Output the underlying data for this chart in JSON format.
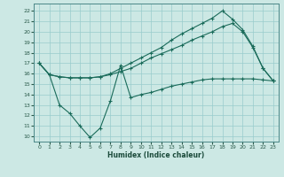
{
  "xlabel": "Humidex (Indice chaleur)",
  "bg_color": "#cce8e4",
  "grid_color": "#99cccc",
  "line_color": "#1a6b5a",
  "xlim": [
    -0.5,
    23.5
  ],
  "ylim": [
    9.5,
    22.7
  ],
  "xticks": [
    0,
    1,
    2,
    3,
    4,
    5,
    6,
    7,
    8,
    9,
    10,
    11,
    12,
    13,
    14,
    15,
    16,
    17,
    18,
    19,
    20,
    21,
    22,
    23
  ],
  "yticks": [
    10,
    11,
    12,
    13,
    14,
    15,
    16,
    17,
    18,
    19,
    20,
    21,
    22
  ],
  "line1_x": [
    0,
    1,
    2,
    3,
    4,
    5,
    6,
    7,
    8,
    9,
    10,
    11,
    12,
    13,
    14,
    15,
    16,
    17,
    18,
    19,
    20,
    21,
    22,
    23
  ],
  "line1_y": [
    17.0,
    15.9,
    15.7,
    15.6,
    15.6,
    15.6,
    15.7,
    15.9,
    16.2,
    16.5,
    17.0,
    17.5,
    17.9,
    18.3,
    18.7,
    19.2,
    19.6,
    20.0,
    20.5,
    20.8,
    20.0,
    18.5,
    16.5,
    15.3
  ],
  "line2_x": [
    0,
    1,
    2,
    3,
    4,
    5,
    6,
    7,
    8,
    9,
    10,
    11,
    12,
    13,
    14,
    15,
    16,
    17,
    18,
    19,
    20,
    21,
    22,
    23
  ],
  "line2_y": [
    17.0,
    15.9,
    15.7,
    15.6,
    15.6,
    15.6,
    15.7,
    16.0,
    16.5,
    17.0,
    17.5,
    18.0,
    18.5,
    19.2,
    19.8,
    20.3,
    20.8,
    21.3,
    22.0,
    21.2,
    20.2,
    18.6,
    16.5,
    15.3
  ],
  "line3_x": [
    0,
    1,
    2,
    3,
    4,
    5,
    6,
    7,
    8,
    9,
    10,
    11,
    12,
    13,
    14,
    15,
    16,
    17,
    18,
    19,
    20,
    21,
    22,
    23
  ],
  "line3_y": [
    17.0,
    15.9,
    13.0,
    12.2,
    11.0,
    9.9,
    10.8,
    13.4,
    16.8,
    13.7,
    14.0,
    14.2,
    14.5,
    14.8,
    15.0,
    15.2,
    15.4,
    15.5,
    15.5,
    15.5,
    15.5,
    15.5,
    15.4,
    15.3
  ]
}
